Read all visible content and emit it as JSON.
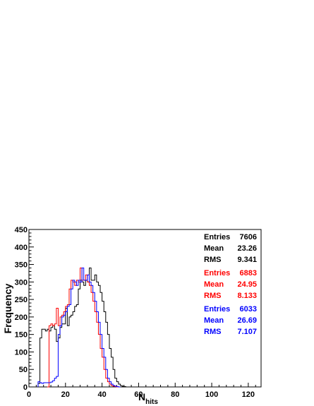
{
  "chart_data": {
    "type": "histogram",
    "xlabel": "N",
    "xlabel_sub": "hits",
    "ylabel": "Frequency",
    "xlim": [
      0,
      127
    ],
    "ylim": [
      0,
      450
    ],
    "x_ticks": [
      "0",
      "20",
      "40",
      "60",
      "80",
      "100",
      "120"
    ],
    "y_ticks": [
      "0",
      "50",
      "100",
      "150",
      "200",
      "250",
      "300",
      "350",
      "400",
      "450"
    ],
    "x_tick_values": [
      0,
      20,
      40,
      60,
      80,
      100,
      120
    ],
    "y_tick_values": [
      0,
      50,
      100,
      150,
      200,
      250,
      300,
      350,
      400,
      450
    ],
    "bin_width": 1,
    "series": [
      {
        "color": "#000000",
        "x_start": 5,
        "values": [
          10,
          140,
          165,
          165,
          160,
          165,
          160,
          170,
          175,
          165,
          130,
          140,
          170,
          180,
          180,
          225,
          175,
          200,
          205,
          215,
          230,
          235,
          280,
          305,
          300,
          290,
          305,
          300,
          340,
          305,
          305,
          320,
          300,
          290,
          270,
          245,
          215,
          185,
          150,
          110,
          85,
          50,
          25,
          15,
          8,
          4,
          2,
          1,
          0,
          0,
          0
        ]
      },
      {
        "color": "#ff0000",
        "x_start": 10,
        "values": [
          0,
          175,
          180,
          175,
          180,
          225,
          175,
          200,
          205,
          215,
          230,
          235,
          280,
          305,
          300,
          290,
          305,
          300,
          340,
          305,
          305,
          320,
          300,
          290,
          270,
          245,
          215,
          185,
          150,
          110,
          85,
          50,
          25,
          15,
          8,
          4,
          2,
          1,
          0
        ]
      },
      {
        "color": "#0000ff",
        "x_start": 5,
        "values": [
          15,
          12,
          10,
          12,
          12,
          12,
          12,
          14,
          18,
          25,
          30,
          150,
          175,
          200,
          205,
          215,
          230,
          235,
          280,
          305,
          300,
          290,
          305,
          300,
          340,
          305,
          305,
          320,
          300,
          290,
          270,
          245,
          215,
          185,
          150,
          110,
          85,
          50,
          25,
          15,
          8,
          4,
          2,
          1,
          0
        ]
      }
    ],
    "stats": [
      {
        "color": "#000000",
        "entries_label": "Entries",
        "entries": "7606",
        "mean_label": "Mean",
        "mean": "23.26",
        "rms_label": "RMS",
        "rms": "9.341"
      },
      {
        "color": "#ff0000",
        "entries_label": "Entries",
        "entries": "6883",
        "mean_label": "Mean",
        "mean": "24.95",
        "rms_label": "RMS",
        "rms": "8.133"
      },
      {
        "color": "#0000ff",
        "entries_label": "Entries",
        "entries": "6033",
        "mean_label": "Mean",
        "mean": "26.69",
        "rms_label": "RMS",
        "rms": "7.107"
      }
    ]
  }
}
